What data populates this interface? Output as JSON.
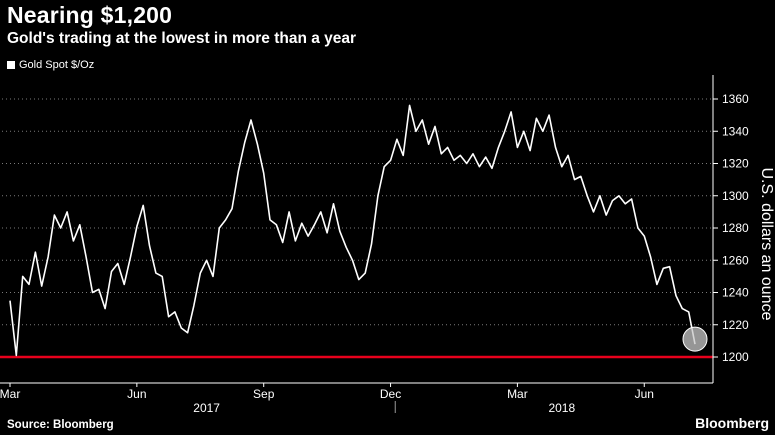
{
  "title": "Nearing $1,200",
  "subtitle": "Gold's trading at the lowest in more than a year",
  "source": "Source: Bloomberg",
  "brand": "Bloomberg",
  "colors": {
    "background": "#000000",
    "series": "#ffffff",
    "reference_line": "#e8001c",
    "grid": "#7a7a7a",
    "highlight_marker": "#c8c8c8"
  },
  "chart_data": {
    "type": "line",
    "title": "Nearing $1,200",
    "subtitle": "Gold's trading at the lowest in more than a year",
    "ylabel": "U.S. dollars an ounce",
    "y_axis_side": "right",
    "ylim": [
      1190,
      1370
    ],
    "yticks": [
      1200,
      1220,
      1240,
      1260,
      1280,
      1300,
      1320,
      1340,
      1360
    ],
    "grid": "horizontal dotted",
    "legend": {
      "placement": "top-left",
      "entries": [
        "Gold Spot $/Oz"
      ]
    },
    "x_tick_labels": [
      "Mar",
      "Jun",
      "Sep",
      "Dec",
      "Mar",
      "Jun"
    ],
    "x_tick_index": [
      0,
      20,
      40,
      60,
      80,
      100
    ],
    "year_labels": [
      {
        "label": "2017",
        "start_index": 0,
        "end_index": 62
      },
      {
        "label": "2018",
        "start_index": 62,
        "end_index": 112
      }
    ],
    "reference_line": {
      "value": 1200
    },
    "highlight_point": {
      "index": 108,
      "value": 1208
    },
    "series": [
      {
        "name": "Gold Spot $/Oz",
        "values": [
          1235,
          1201,
          1250,
          1245,
          1265,
          1244,
          1262,
          1288,
          1280,
          1290,
          1272,
          1282,
          1262,
          1240,
          1242,
          1230,
          1253,
          1258,
          1245,
          1262,
          1281,
          1294,
          1269,
          1252,
          1250,
          1225,
          1228,
          1218,
          1215,
          1232,
          1252,
          1260,
          1250,
          1280,
          1285,
          1292,
          1315,
          1333,
          1347,
          1332,
          1314,
          1285,
          1282,
          1271,
          1290,
          1272,
          1283,
          1275,
          1282,
          1290,
          1277,
          1295,
          1278,
          1268,
          1260,
          1248,
          1252,
          1270,
          1300,
          1318,
          1322,
          1335,
          1325,
          1356,
          1340,
          1347,
          1332,
          1343,
          1326,
          1330,
          1322,
          1325,
          1320,
          1326,
          1318,
          1324,
          1317,
          1330,
          1340,
          1352,
          1330,
          1340,
          1328,
          1348,
          1340,
          1350,
          1330,
          1318,
          1325,
          1310,
          1312,
          1300,
          1290,
          1300,
          1288,
          1297,
          1300,
          1295,
          1298,
          1280,
          1275,
          1262,
          1245,
          1255,
          1256,
          1238,
          1230,
          1228,
          1208
        ]
      }
    ]
  }
}
